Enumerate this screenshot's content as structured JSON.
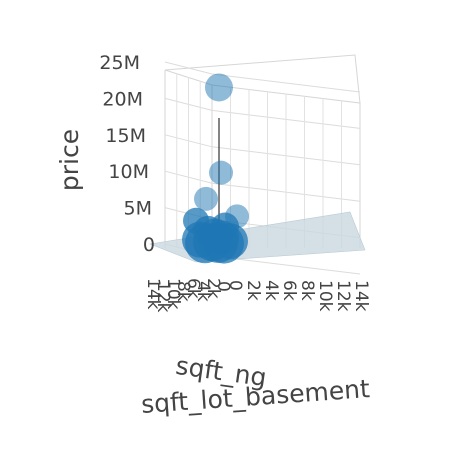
{
  "chart_data": {
    "type": "scatter",
    "subtype": "3d-scatter",
    "title": "",
    "zlabel": "price",
    "xlabel": "sqft_lot_basement",
    "ylabel": "sqft_ng",
    "z_ticks": [
      "0",
      "5M",
      "10M",
      "15M",
      "20M",
      "25M"
    ],
    "x_ticks": [
      "14k",
      "12k",
      "10k",
      "8k",
      "6k",
      "4k",
      "2k",
      "0"
    ],
    "y_ticks": [
      "14k",
      "12k",
      "10k",
      "8k",
      "6k",
      "4k",
      "2k",
      "0"
    ],
    "zlim": [
      0,
      25000000
    ],
    "grid": true,
    "has_fitted_plane": true,
    "marker_color": "#1f77b4",
    "marker_opacity": 0.5,
    "plane_color": "#c9d8de",
    "points": [
      {
        "z": 21500000
      },
      {
        "z": 9800000
      },
      {
        "z": 6200000
      },
      {
        "z": 3800000
      },
      {
        "z": 3200000
      },
      {
        "z": 2400000
      },
      {
        "z": 1800000
      },
      {
        "z": 1300000
      },
      {
        "z": 900000
      },
      {
        "z": 600000
      },
      {
        "z": 400000
      },
      {
        "z": 250000
      },
      {
        "z": 150000
      },
      {
        "z": 100000
      },
      {
        "z": 60000
      }
    ]
  }
}
